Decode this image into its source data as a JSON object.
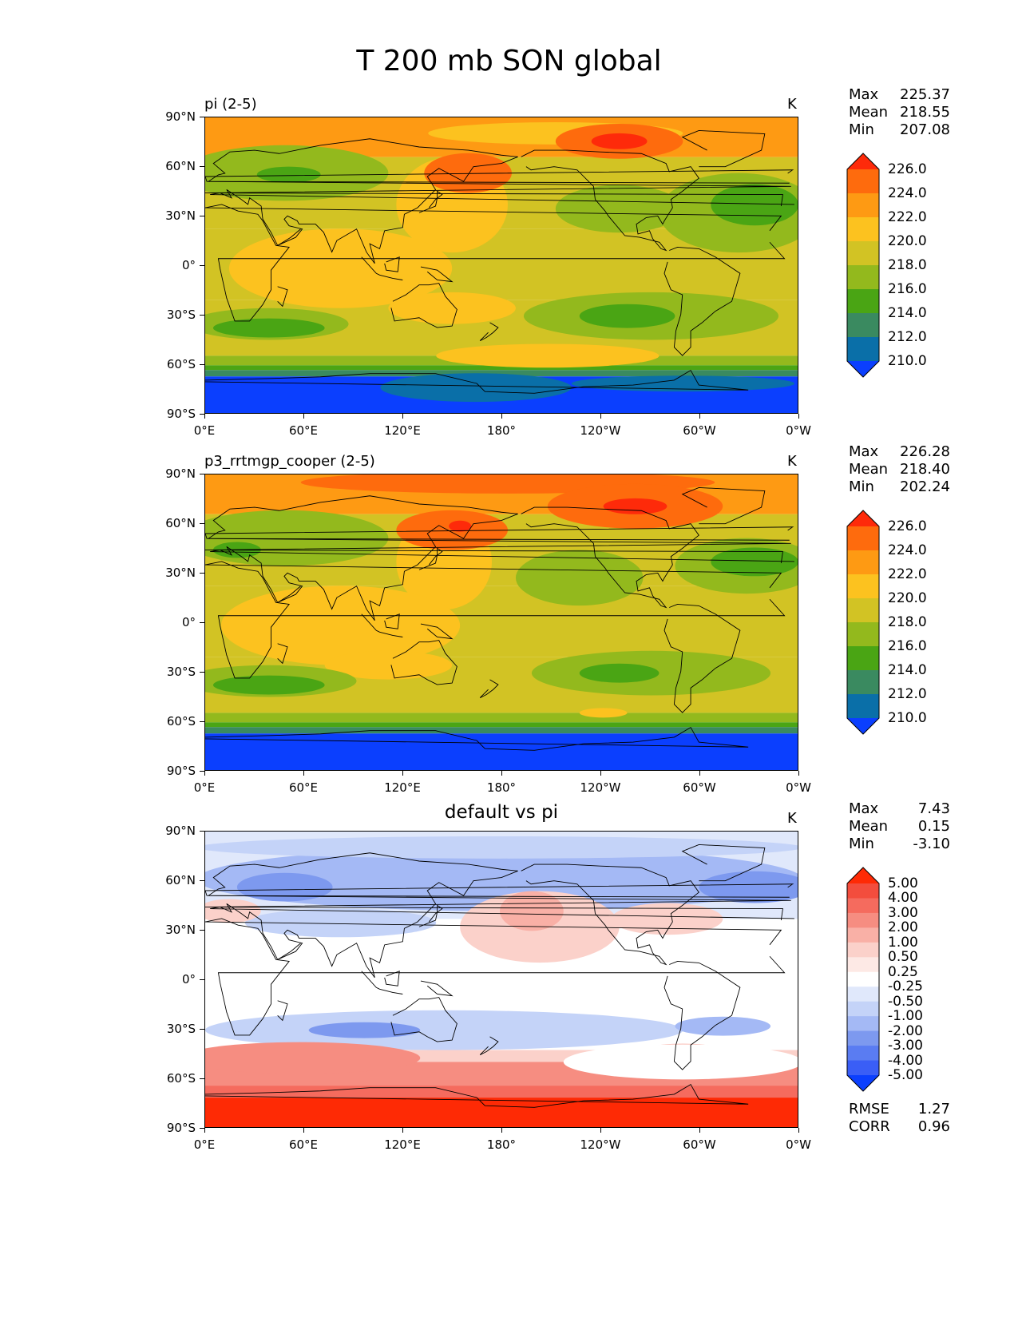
{
  "figure": {
    "title": "T 200 mb SON global"
  },
  "axes": {
    "y_ticks": [
      "90°N",
      "60°N",
      "30°N",
      "0°",
      "30°S",
      "60°S",
      "90°S"
    ],
    "x_ticks": [
      "0°E",
      "60°E",
      "120°E",
      "180°",
      "120°W",
      "60°W",
      "0°W"
    ]
  },
  "panels": [
    {
      "left_title": "pi (2-5)",
      "center_title": "",
      "units": "K",
      "stats": [
        {
          "label": "Max",
          "value": "225.37"
        },
        {
          "label": "Mean",
          "value": "218.55"
        },
        {
          "label": "Min",
          "value": "207.08"
        }
      ]
    },
    {
      "left_title": "p3_rrtmgp_cooper (2-5)",
      "center_title": "",
      "units": "K",
      "stats": [
        {
          "label": "Max",
          "value": "226.28"
        },
        {
          "label": "Mean",
          "value": "218.40"
        },
        {
          "label": "Min",
          "value": "202.24"
        }
      ]
    },
    {
      "left_title": "",
      "center_title": "default vs pi",
      "units": "K",
      "stats": [
        {
          "label": "Max",
          "value": "7.43"
        },
        {
          "label": "Mean",
          "value": "0.15"
        },
        {
          "label": "Min",
          "value": "-3.10"
        }
      ],
      "extra": [
        {
          "label": "RMSE",
          "value": "1.27"
        },
        {
          "label": "CORR",
          "value": "0.96"
        }
      ]
    }
  ],
  "colorbars": {
    "absolute": {
      "labels": [
        "226.0",
        "224.0",
        "222.0",
        "220.0",
        "218.0",
        "216.0",
        "214.0",
        "212.0",
        "210.0"
      ],
      "colors": [
        "#fe2a0a",
        "#fe6b0d",
        "#fe9a13",
        "#fcc21f",
        "#d2c324",
        "#93b91d",
        "#4aa514",
        "#3a8a60",
        "#0a6fa8",
        "#0b3ffe"
      ]
    },
    "difference": {
      "labels": [
        "5.00",
        "4.00",
        "3.00",
        "2.00",
        "1.00",
        "0.50",
        "0.25",
        "-0.25",
        "-0.50",
        "-1.00",
        "-2.00",
        "-3.00",
        "-4.00",
        "-5.00"
      ],
      "colors": [
        "#fe2a05",
        "#f34d3d",
        "#f56b5e",
        "#f68d81",
        "#f9b0a6",
        "#fbd1ca",
        "#fde9e5",
        "#ffffff",
        "#e0e8fb",
        "#c4d3f8",
        "#a4b9f5",
        "#7d99ef",
        "#5a7cf2",
        "#3a5ef6",
        "#0b3ffe"
      ]
    }
  }
}
